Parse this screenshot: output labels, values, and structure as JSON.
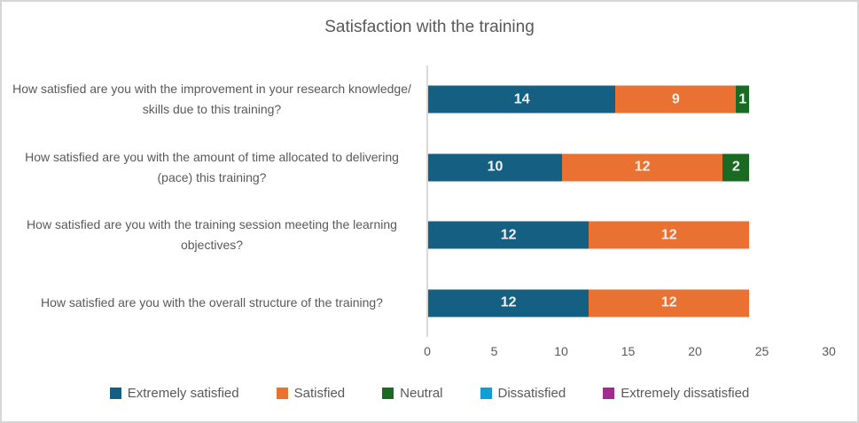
{
  "chart_data": {
    "type": "bar",
    "orientation": "horizontal",
    "stacked": true,
    "title": "Satisfaction with the training",
    "categories": [
      "How satisfied are you with the improvement in your research knowledge/ skills due to this training?",
      "How satisfied are you with the amount of time allocated to delivering (pace) this training?",
      "How satisfied are you with the training session meeting the learning objectives?",
      "How satisfied are you with the overall structure of the training?"
    ],
    "series": [
      {
        "name": "Extremely satisfied",
        "color": "#156082",
        "values": [
          14,
          10,
          12,
          12
        ]
      },
      {
        "name": "Satisfied",
        "color": "#E97132",
        "values": [
          9,
          12,
          12,
          12
        ]
      },
      {
        "name": "Neutral",
        "color": "#196B24",
        "values": [
          1,
          2,
          0,
          0
        ]
      },
      {
        "name": "Dissatisfied",
        "color": "#0F9ED5",
        "values": [
          0,
          0,
          0,
          0
        ]
      },
      {
        "name": "Extremely dissatisfied",
        "color": "#A02B93",
        "values": [
          0,
          0,
          0,
          0
        ]
      }
    ],
    "xlim": [
      0,
      30
    ],
    "x_ticks": [
      0,
      5,
      10,
      15,
      20,
      25,
      30
    ],
    "grid": false,
    "legend_position": "bottom",
    "data_labels": true,
    "data_label_color": "#F2F2F2",
    "text_color": "#595959",
    "axis_line_color": "#D9D9D9"
  }
}
